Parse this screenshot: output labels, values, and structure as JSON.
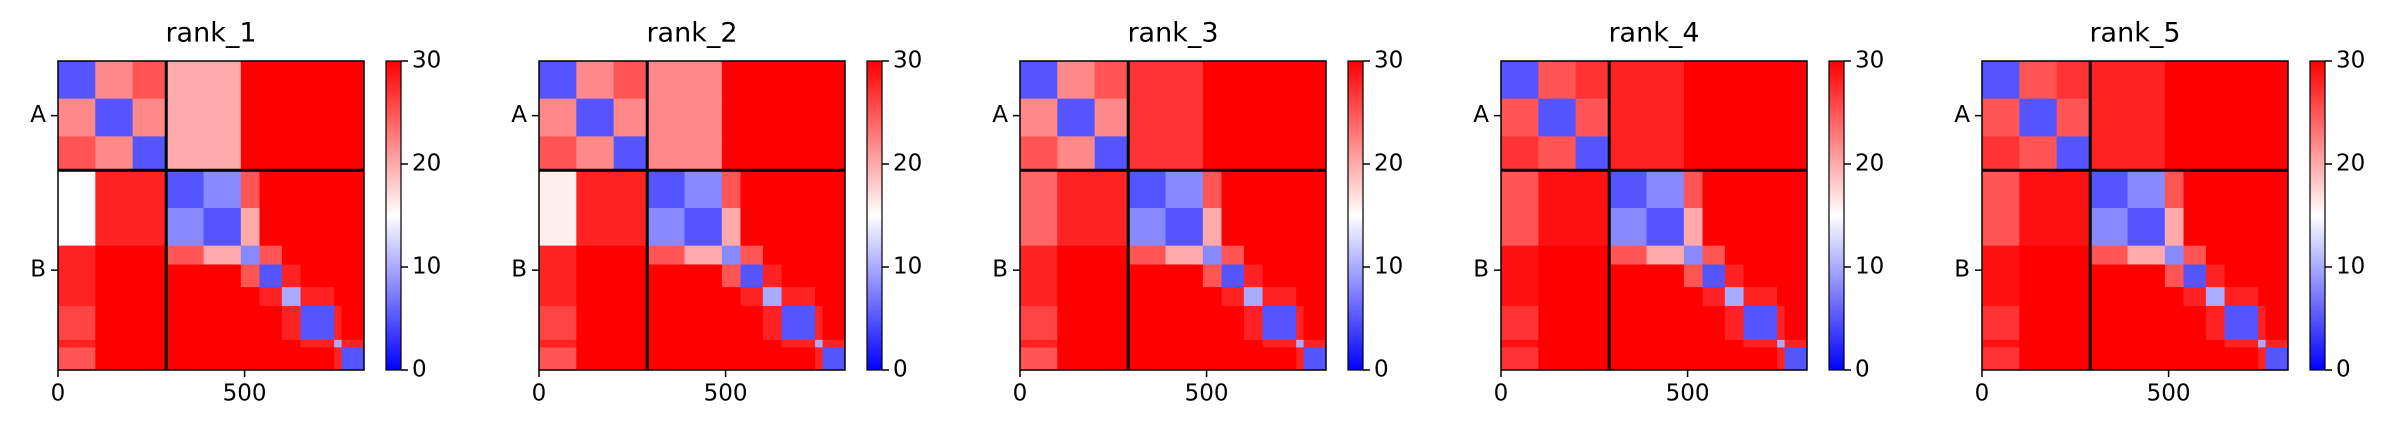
{
  "chart_data": [
    {
      "type": "heatmap",
      "title": "rank_1",
      "bins": [
        0,
        100,
        200,
        290,
        390,
        490,
        540,
        600,
        650,
        740,
        760,
        820
      ],
      "values": [
        [
          5,
          22,
          25,
          20,
          20,
          30,
          30,
          30,
          30,
          30,
          30
        ],
        [
          22,
          5,
          22,
          20,
          20,
          30,
          30,
          30,
          30,
          30,
          30
        ],
        [
          25,
          22,
          5,
          20,
          20,
          30,
          30,
          30,
          30,
          30,
          30
        ],
        [
          15,
          28,
          28,
          5,
          8,
          25,
          30,
          30,
          30,
          30,
          30
        ],
        [
          15,
          28,
          28,
          8,
          5,
          20,
          30,
          30,
          30,
          30,
          30
        ],
        [
          28,
          30,
          30,
          25,
          20,
          8,
          25,
          30,
          30,
          30,
          30
        ],
        [
          28,
          30,
          30,
          30,
          30,
          25,
          5,
          28,
          30,
          30,
          30
        ],
        [
          28,
          30,
          30,
          30,
          30,
          30,
          28,
          10,
          28,
          30,
          30
        ],
        [
          26,
          30,
          30,
          30,
          30,
          30,
          30,
          28,
          5,
          28,
          30
        ],
        [
          28,
          30,
          30,
          30,
          30,
          30,
          30,
          30,
          28,
          10,
          28
        ],
        [
          25,
          30,
          30,
          30,
          30,
          30,
          30,
          30,
          30,
          28,
          5
        ]
      ],
      "colormap": [
        "#0000ff",
        "#ffffff",
        "#ff0000"
      ],
      "clim": [
        0,
        30
      ],
      "cticks": [
        0,
        10,
        20,
        30
      ],
      "xlim": [
        0,
        820
      ],
      "ylim": [
        820,
        0
      ],
      "xticks": [
        0,
        500
      ],
      "yticks": [
        {
          "value": 145,
          "label": "A"
        },
        {
          "value": 555,
          "label": "B"
        }
      ],
      "chain_breaks": [
        290
      ]
    },
    {
      "type": "heatmap",
      "title": "rank_2",
      "bins": [
        0,
        100,
        200,
        290,
        390,
        490,
        540,
        600,
        650,
        740,
        760,
        820
      ],
      "values": [
        [
          5,
          22,
          25,
          22,
          22,
          30,
          30,
          30,
          30,
          30,
          30
        ],
        [
          22,
          5,
          22,
          22,
          22,
          30,
          30,
          30,
          30,
          30,
          30
        ],
        [
          25,
          22,
          5,
          22,
          22,
          30,
          30,
          30,
          30,
          30,
          30
        ],
        [
          16,
          28,
          28,
          5,
          8,
          25,
          30,
          30,
          30,
          30,
          30
        ],
        [
          16,
          28,
          28,
          8,
          5,
          20,
          30,
          30,
          30,
          30,
          30
        ],
        [
          28,
          30,
          30,
          25,
          20,
          8,
          25,
          30,
          30,
          30,
          30
        ],
        [
          28,
          30,
          30,
          30,
          30,
          25,
          5,
          28,
          30,
          30,
          30
        ],
        [
          28,
          30,
          30,
          30,
          30,
          30,
          28,
          10,
          28,
          30,
          30
        ],
        [
          26,
          30,
          30,
          30,
          30,
          30,
          30,
          28,
          5,
          28,
          30
        ],
        [
          28,
          30,
          30,
          30,
          30,
          30,
          30,
          30,
          28,
          10,
          28
        ],
        [
          25,
          30,
          30,
          30,
          30,
          30,
          30,
          30,
          30,
          28,
          5
        ]
      ],
      "colormap": [
        "#0000ff",
        "#ffffff",
        "#ff0000"
      ],
      "clim": [
        0,
        30
      ],
      "cticks": [
        0,
        10,
        20,
        30
      ],
      "xlim": [
        0,
        820
      ],
      "ylim": [
        820,
        0
      ],
      "xticks": [
        0,
        500
      ],
      "yticks": [
        {
          "value": 145,
          "label": "A"
        },
        {
          "value": 555,
          "label": "B"
        }
      ],
      "chain_breaks": [
        290
      ]
    },
    {
      "type": "heatmap",
      "title": "rank_3",
      "bins": [
        0,
        100,
        200,
        290,
        390,
        490,
        540,
        600,
        650,
        740,
        760,
        820
      ],
      "values": [
        [
          5,
          22,
          25,
          27,
          27,
          30,
          30,
          30,
          30,
          30,
          30
        ],
        [
          22,
          5,
          22,
          27,
          27,
          30,
          30,
          30,
          30,
          30,
          30
        ],
        [
          25,
          22,
          5,
          27,
          27,
          30,
          30,
          30,
          30,
          30,
          30
        ],
        [
          24,
          28,
          28,
          5,
          8,
          25,
          30,
          30,
          30,
          30,
          30
        ],
        [
          24,
          28,
          28,
          8,
          5,
          20,
          30,
          30,
          30,
          30,
          30
        ],
        [
          28,
          30,
          30,
          25,
          20,
          8,
          25,
          30,
          30,
          30,
          30
        ],
        [
          28,
          30,
          30,
          30,
          30,
          25,
          5,
          28,
          30,
          30,
          30
        ],
        [
          28,
          30,
          30,
          30,
          30,
          30,
          28,
          10,
          28,
          30,
          30
        ],
        [
          26,
          30,
          30,
          30,
          30,
          30,
          30,
          28,
          5,
          28,
          30
        ],
        [
          28,
          30,
          30,
          30,
          30,
          30,
          30,
          30,
          28,
          10,
          28
        ],
        [
          25,
          30,
          30,
          30,
          30,
          30,
          30,
          30,
          30,
          28,
          5
        ]
      ],
      "colormap": [
        "#0000ff",
        "#ffffff",
        "#ff0000"
      ],
      "clim": [
        0,
        30
      ],
      "cticks": [
        0,
        10,
        20,
        30
      ],
      "xlim": [
        0,
        820
      ],
      "ylim": [
        820,
        0
      ],
      "xticks": [
        0,
        500
      ],
      "yticks": [
        {
          "value": 145,
          "label": "A"
        },
        {
          "value": 555,
          "label": "B"
        }
      ],
      "chain_breaks": [
        290
      ]
    },
    {
      "type": "heatmap",
      "title": "rank_4",
      "bins": [
        0,
        100,
        200,
        290,
        390,
        490,
        540,
        600,
        650,
        740,
        760,
        820
      ],
      "values": [
        [
          5,
          25,
          27,
          28,
          28,
          30,
          30,
          30,
          30,
          30,
          30
        ],
        [
          25,
          5,
          25,
          28,
          28,
          30,
          30,
          30,
          30,
          30,
          30
        ],
        [
          27,
          25,
          5,
          28,
          28,
          30,
          30,
          30,
          30,
          30,
          30
        ],
        [
          25,
          29,
          29,
          5,
          8,
          25,
          30,
          30,
          30,
          30,
          30
        ],
        [
          25,
          29,
          29,
          8,
          5,
          20,
          30,
          30,
          30,
          30,
          30
        ],
        [
          29,
          30,
          30,
          25,
          20,
          8,
          25,
          30,
          30,
          30,
          30
        ],
        [
          29,
          30,
          30,
          30,
          30,
          25,
          5,
          28,
          30,
          30,
          30
        ],
        [
          29,
          30,
          30,
          30,
          30,
          30,
          28,
          10,
          28,
          30,
          30
        ],
        [
          27,
          30,
          30,
          30,
          30,
          30,
          30,
          28,
          5,
          28,
          30
        ],
        [
          29,
          30,
          30,
          30,
          30,
          30,
          30,
          30,
          28,
          10,
          28
        ],
        [
          27,
          30,
          30,
          30,
          30,
          30,
          30,
          30,
          30,
          28,
          5
        ]
      ],
      "colormap": [
        "#0000ff",
        "#ffffff",
        "#ff0000"
      ],
      "clim": [
        0,
        30
      ],
      "cticks": [
        0,
        10,
        20,
        30
      ],
      "xlim": [
        0,
        820
      ],
      "ylim": [
        820,
        0
      ],
      "xticks": [
        0,
        500
      ],
      "yticks": [
        {
          "value": 145,
          "label": "A"
        },
        {
          "value": 555,
          "label": "B"
        }
      ],
      "chain_breaks": [
        290
      ]
    },
    {
      "type": "heatmap",
      "title": "rank_5",
      "bins": [
        0,
        100,
        200,
        290,
        390,
        490,
        540,
        600,
        650,
        740,
        760,
        820
      ],
      "values": [
        [
          5,
          25,
          27,
          28,
          28,
          30,
          30,
          30,
          30,
          30,
          30
        ],
        [
          25,
          5,
          25,
          28,
          28,
          30,
          30,
          30,
          30,
          30,
          30
        ],
        [
          27,
          25,
          5,
          28,
          28,
          30,
          30,
          30,
          30,
          30,
          30
        ],
        [
          25,
          29,
          29,
          5,
          8,
          25,
          30,
          30,
          30,
          30,
          30
        ],
        [
          25,
          29,
          29,
          8,
          5,
          20,
          30,
          30,
          30,
          30,
          30
        ],
        [
          29,
          30,
          30,
          25,
          20,
          8,
          25,
          30,
          30,
          30,
          30
        ],
        [
          29,
          30,
          30,
          30,
          30,
          25,
          5,
          28,
          30,
          30,
          30
        ],
        [
          29,
          30,
          30,
          30,
          30,
          30,
          28,
          10,
          28,
          30,
          30
        ],
        [
          27,
          30,
          30,
          30,
          30,
          30,
          30,
          28,
          5,
          28,
          30
        ],
        [
          29,
          30,
          30,
          30,
          30,
          30,
          30,
          30,
          28,
          10,
          28
        ],
        [
          27,
          30,
          30,
          30,
          30,
          30,
          30,
          30,
          30,
          28,
          5
        ]
      ],
      "colormap": [
        "#0000ff",
        "#ffffff",
        "#ff0000"
      ],
      "clim": [
        0,
        30
      ],
      "cticks": [
        0,
        10,
        20,
        30
      ],
      "xlim": [
        0,
        820
      ],
      "ylim": [
        820,
        0
      ],
      "xticks": [
        0,
        500
      ],
      "yticks": [
        {
          "value": 145,
          "label": "A"
        },
        {
          "value": 555,
          "label": "B"
        }
      ],
      "chain_breaks": [
        290
      ]
    }
  ]
}
